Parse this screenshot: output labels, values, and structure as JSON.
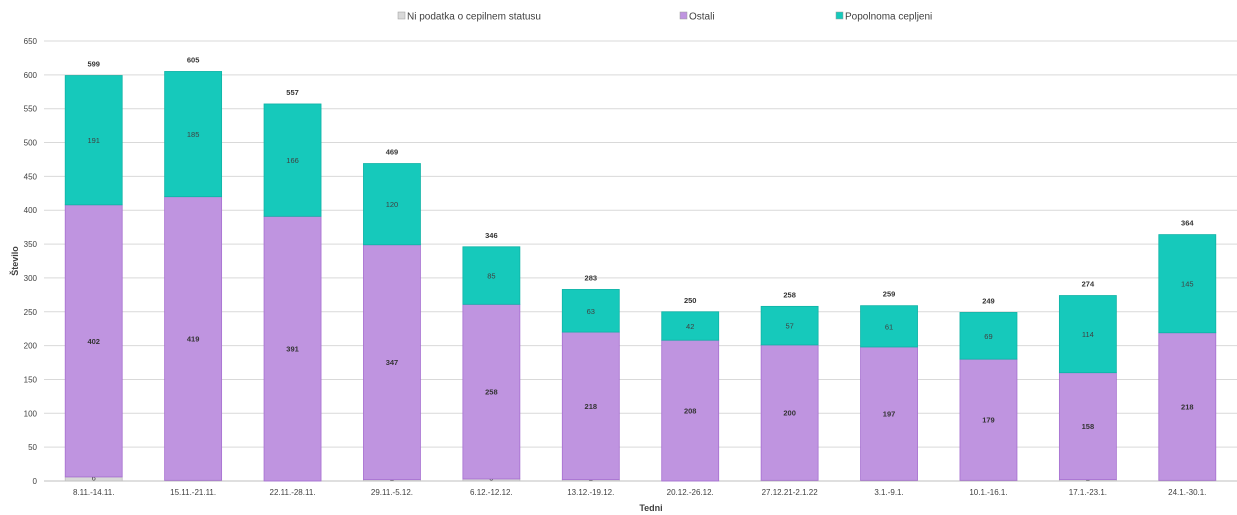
{
  "chart_data": {
    "type": "bar",
    "stacked": true,
    "title": "",
    "xlabel": "Tedni",
    "ylabel": "Število",
    "ylim": [
      0,
      650
    ],
    "yticks": [
      0,
      50,
      100,
      150,
      200,
      250,
      300,
      350,
      400,
      450,
      500,
      550,
      600,
      650
    ],
    "grid": true,
    "legend_position": "top",
    "categories": [
      "8.11.-14.11.",
      "15.11.-21.11.",
      "22.11.-28.11.",
      "29.11.-5.12.",
      "6.12.-12.12.",
      "13.12.-19.12.",
      "20.12.-26.12.",
      "27.12.21-2.1.22",
      "3.1.-9.1.",
      "10.1.-16.1.",
      "17.1.-23.1.",
      "24.1.-30.1."
    ],
    "series": [
      {
        "name": "Ni podatka o cepilnem statusu",
        "color": "#d9d9d9",
        "values": [
          6,
          1,
          0,
          2,
          3,
          2,
          0,
          1,
          1,
          1,
          2,
          1
        ]
      },
      {
        "name": "Ostali",
        "color": "#bf94e0",
        "values": [
          402,
          419,
          391,
          347,
          258,
          218,
          208,
          200,
          197,
          179,
          158,
          218
        ]
      },
      {
        "name": "Popolnoma cepljeni",
        "color": "#16c9bb",
        "values": [
          191,
          185,
          166,
          120,
          85,
          63,
          42,
          57,
          61,
          69,
          114,
          145
        ]
      }
    ],
    "totals": [
      599,
      605,
      557,
      469,
      346,
      283,
      250,
      258,
      259,
      249,
      274,
      364
    ]
  }
}
